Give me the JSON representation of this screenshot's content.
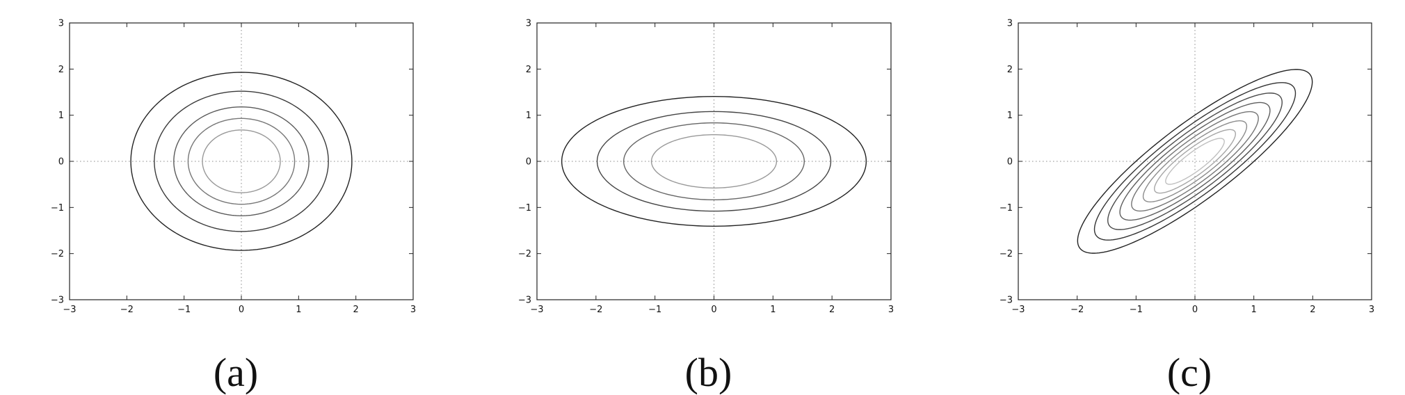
{
  "chart_data": [
    {
      "type": "contour",
      "caption": "(a)",
      "xlim": [
        -3,
        3
      ],
      "ylim": [
        -3,
        3
      ],
      "xticks": [
        -3,
        -2,
        -1,
        0,
        1,
        2,
        3
      ],
      "yticks": [
        -3,
        -2,
        -1,
        0,
        1,
        2,
        3
      ],
      "xtick_labels": [
        "−3",
        "−2",
        "−1",
        "0",
        "1",
        "2",
        "3"
      ],
      "ytick_labels": [
        "−3",
        "−2",
        "−1",
        "0",
        "1",
        "2",
        "3"
      ],
      "zero_lines": "dotted",
      "grid": false,
      "ellipse": {
        "center": [
          0,
          0
        ],
        "angle_deg": 0,
        "axis_ratio": 1.0
      },
      "contours": [
        {
          "semi_major": 1.93,
          "color": "#222222"
        },
        {
          "semi_major": 1.52,
          "color": "#3a3a3a"
        },
        {
          "semi_major": 1.18,
          "color": "#5a5a5a"
        },
        {
          "semi_major": 0.93,
          "color": "#777777"
        },
        {
          "semi_major": 0.68,
          "color": "#999999"
        }
      ]
    },
    {
      "type": "contour",
      "caption": "(b)",
      "xlim": [
        -3,
        3
      ],
      "ylim": [
        -3,
        3
      ],
      "xticks": [
        -3,
        -2,
        -1,
        0,
        1,
        2,
        3
      ],
      "yticks": [
        -3,
        -2,
        -1,
        0,
        1,
        2,
        3
      ],
      "xtick_labels": [
        "−3",
        "−2",
        "−1",
        "0",
        "1",
        "2",
        "3"
      ],
      "ytick_labels": [
        "−3",
        "−2",
        "−1",
        "0",
        "1",
        "2",
        "3"
      ],
      "zero_lines": "dotted",
      "grid": false,
      "ellipse": {
        "center": [
          0,
          0
        ],
        "angle_deg": 0,
        "axis_ratio": 0.545
      },
      "contours": [
        {
          "semi_major": 2.58,
          "color": "#222222"
        },
        {
          "semi_major": 1.98,
          "color": "#444444"
        },
        {
          "semi_major": 1.53,
          "color": "#666666"
        },
        {
          "semi_major": 1.06,
          "color": "#999999"
        }
      ]
    },
    {
      "type": "contour",
      "caption": "(c)",
      "xlim": [
        -3,
        3
      ],
      "ylim": [
        -3,
        3
      ],
      "xticks": [
        -3,
        -2,
        -1,
        0,
        1,
        2,
        3
      ],
      "yticks": [
        -3,
        -2,
        -1,
        0,
        1,
        2,
        3
      ],
      "xtick_labels": [
        "−3",
        "−2",
        "−1",
        "0",
        "1",
        "2",
        "3"
      ],
      "ytick_labels": [
        "−3",
        "−2",
        "−1",
        "0",
        "1",
        "2",
        "3"
      ],
      "zero_lines": "dotted",
      "grid": false,
      "ellipse": {
        "center": [
          0,
          0
        ],
        "angle_deg": 45,
        "axis_ratio": 0.27
      },
      "contours": [
        {
          "semi_major": 2.72,
          "color": "#222222"
        },
        {
          "semi_major": 2.33,
          "color": "#333333"
        },
        {
          "semi_major": 2.02,
          "color": "#4a4a4a"
        },
        {
          "semi_major": 1.74,
          "color": "#5e5e5e"
        },
        {
          "semi_major": 1.47,
          "color": "#747474"
        },
        {
          "semi_major": 1.2,
          "color": "#8c8c8c"
        },
        {
          "semi_major": 0.94,
          "color": "#a6a6a6"
        },
        {
          "semi_major": 0.68,
          "color": "#bfbfbf"
        }
      ]
    }
  ]
}
